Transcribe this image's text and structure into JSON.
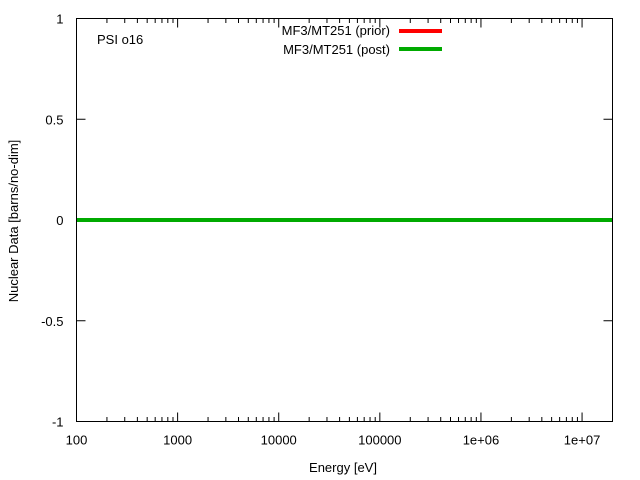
{
  "chart_data": {
    "type": "line",
    "xscale": "log",
    "xlim": [
      100,
      20000000
    ],
    "ylim": [
      -1,
      1
    ],
    "xlabel": "Energy [eV]",
    "ylabel": "Nuclear Data [barns/no-dim]",
    "annotation": "PSI o16",
    "legend_position": "top-center",
    "x_ticks": [
      {
        "value": 100,
        "label": "100"
      },
      {
        "value": 1000,
        "label": "1000"
      },
      {
        "value": 10000,
        "label": "10000"
      },
      {
        "value": 100000,
        "label": "100000"
      },
      {
        "value": 1000000,
        "label": "1e+06"
      },
      {
        "value": 10000000,
        "label": "1e+07"
      }
    ],
    "y_ticks": [
      {
        "value": 1,
        "label": "1"
      },
      {
        "value": 0.5,
        "label": "0.5"
      },
      {
        "value": 0,
        "label": "0"
      },
      {
        "value": -0.5,
        "label": "-0.5"
      },
      {
        "value": -1,
        "label": "-1"
      }
    ],
    "series": [
      {
        "name": "MF3/MT251 (prior)",
        "color": "#ff0000",
        "x": [
          100,
          20000000
        ],
        "y": [
          0,
          0
        ]
      },
      {
        "name": "MF3/MT251 (post)",
        "color": "#00aa00",
        "x": [
          100,
          20000000
        ],
        "y": [
          0,
          0
        ]
      }
    ]
  }
}
